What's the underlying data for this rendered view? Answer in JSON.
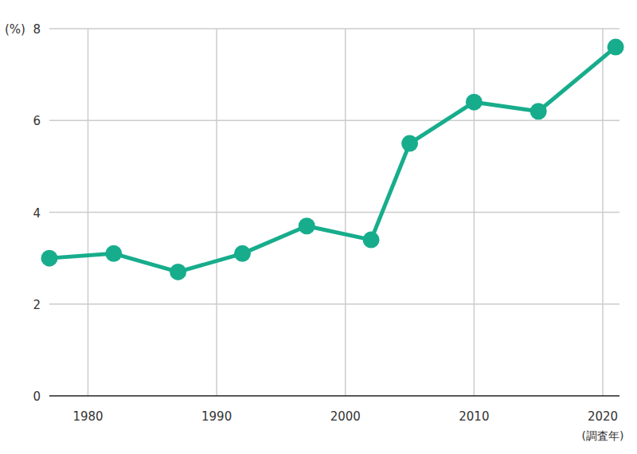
{
  "chart_data": {
    "type": "line",
    "ylabel": "(%)",
    "xlabel": "(調査年)",
    "x": [
      1977,
      1982,
      1987,
      1992,
      1997,
      2002,
      2005,
      2010,
      2015,
      2021
    ],
    "values": [
      3.0,
      3.1,
      2.7,
      3.1,
      3.7,
      3.4,
      5.5,
      6.4,
      6.2,
      7.6
    ],
    "color": "#17ad8c",
    "marker": "circle",
    "xlim": [
      1977,
      2021.3
    ],
    "xticks": [
      1980,
      1990,
      2000,
      2010,
      2020
    ],
    "ylim": [
      0,
      8
    ],
    "yticks": [
      0,
      2,
      4,
      6,
      8
    ],
    "grid": true
  }
}
